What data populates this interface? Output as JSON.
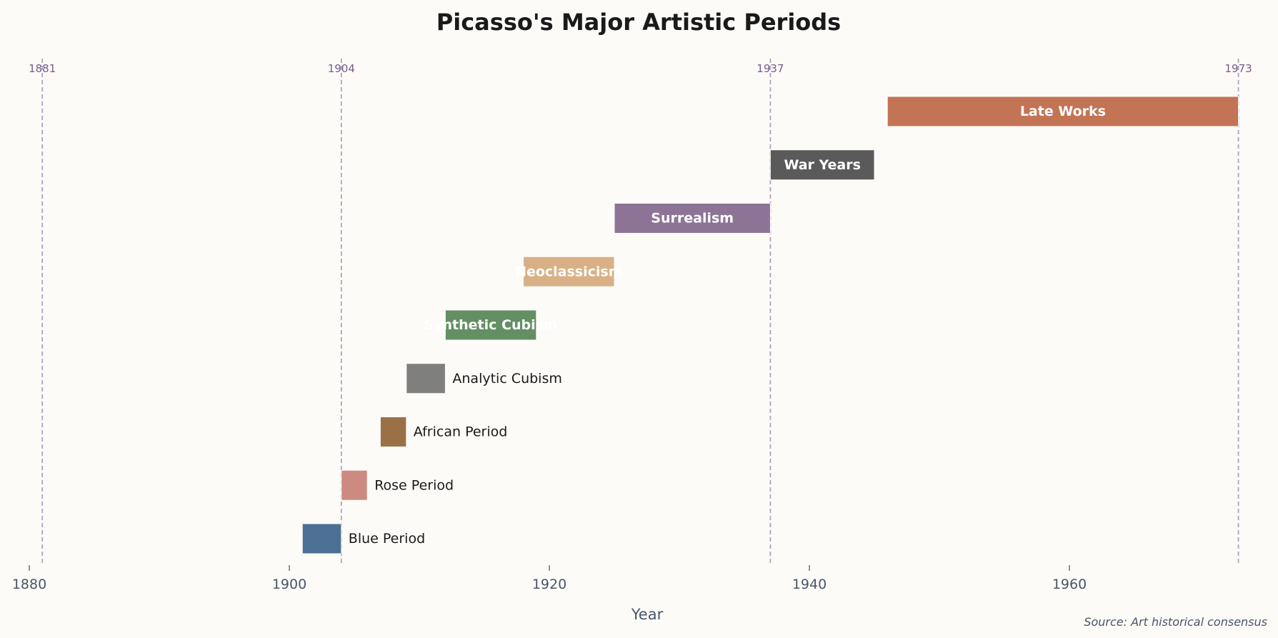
{
  "chart_data": {
    "type": "bar",
    "orientation": "horizontal-timeline",
    "title": "Picasso's Major Artistic Periods",
    "xlabel": "Year",
    "ylabel": "",
    "xlim": [
      1879,
      1975
    ],
    "xticks": [
      1880,
      1900,
      1920,
      1940,
      1960
    ],
    "grid": false,
    "source_note": "Source: Art historical consensus",
    "periods": [
      {
        "name": "Blue Period",
        "start": 1901,
        "end": 1904,
        "color": "#4c7093",
        "label_inside": false
      },
      {
        "name": "Rose Period",
        "start": 1904,
        "end": 1906,
        "color": "#cd8a80",
        "label_inside": false
      },
      {
        "name": "African Period",
        "start": 1907,
        "end": 1909,
        "color": "#9a7147",
        "label_inside": false
      },
      {
        "name": "Analytic Cubism",
        "start": 1909,
        "end": 1912,
        "color": "#7f7f7d",
        "label_inside": false
      },
      {
        "name": "Synthetic Cubism",
        "start": 1912,
        "end": 1919,
        "color": "#638f63",
        "label_inside": true
      },
      {
        "name": "Neoclassicism",
        "start": 1918,
        "end": 1925,
        "color": "#d9b086",
        "label_inside": true
      },
      {
        "name": "Surrealism",
        "start": 1925,
        "end": 1937,
        "color": "#8d7497",
        "label_inside": true
      },
      {
        "name": "War Years",
        "start": 1937,
        "end": 1945,
        "color": "#5a5a5a",
        "label_inside": true
      },
      {
        "name": "Late Works",
        "start": 1946,
        "end": 1973,
        "color": "#c37455",
        "label_inside": true
      }
    ],
    "markers": [
      {
        "year": 1881,
        "label": "1881"
      },
      {
        "year": 1904,
        "label": "1904"
      },
      {
        "year": 1937,
        "label": "1937"
      },
      {
        "year": 1973,
        "label": "1973"
      }
    ],
    "marker_color": "#b3a0c0",
    "marker_label_color": "#7a5a8a"
  }
}
